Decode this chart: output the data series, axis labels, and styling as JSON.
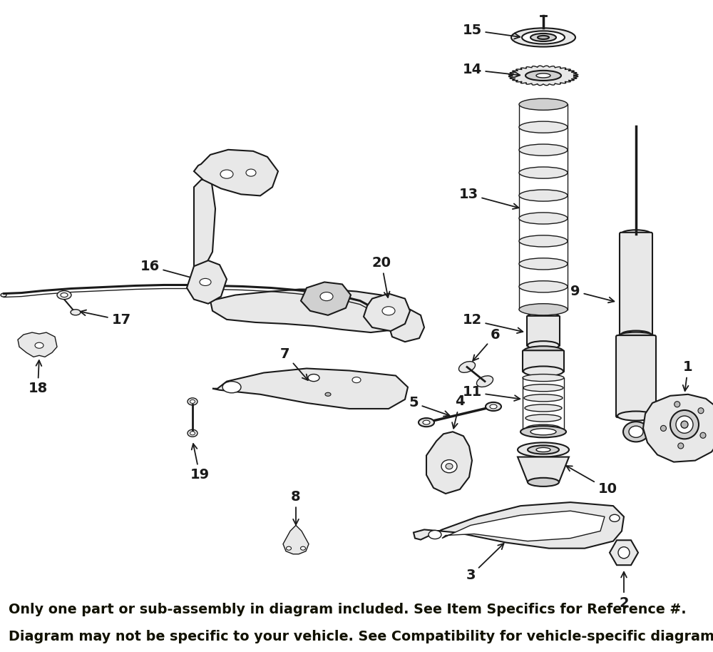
{
  "banner_text_line1": "Only one part or sub-assembly in diagram included. See Item Specifics for Reference #.",
  "banner_text_line2": "Diagram may not be specific to your vehicle. See Compatibility for vehicle-specific diagrams.",
  "banner_color": "#F5A01E",
  "banner_text_color": "#111100",
  "bg_color": "#ffffff",
  "lc": "#1a1a1a",
  "fc_light": "#e8e8e8",
  "fc_mid": "#d0d0d0",
  "fc_dark": "#b8b8b8"
}
